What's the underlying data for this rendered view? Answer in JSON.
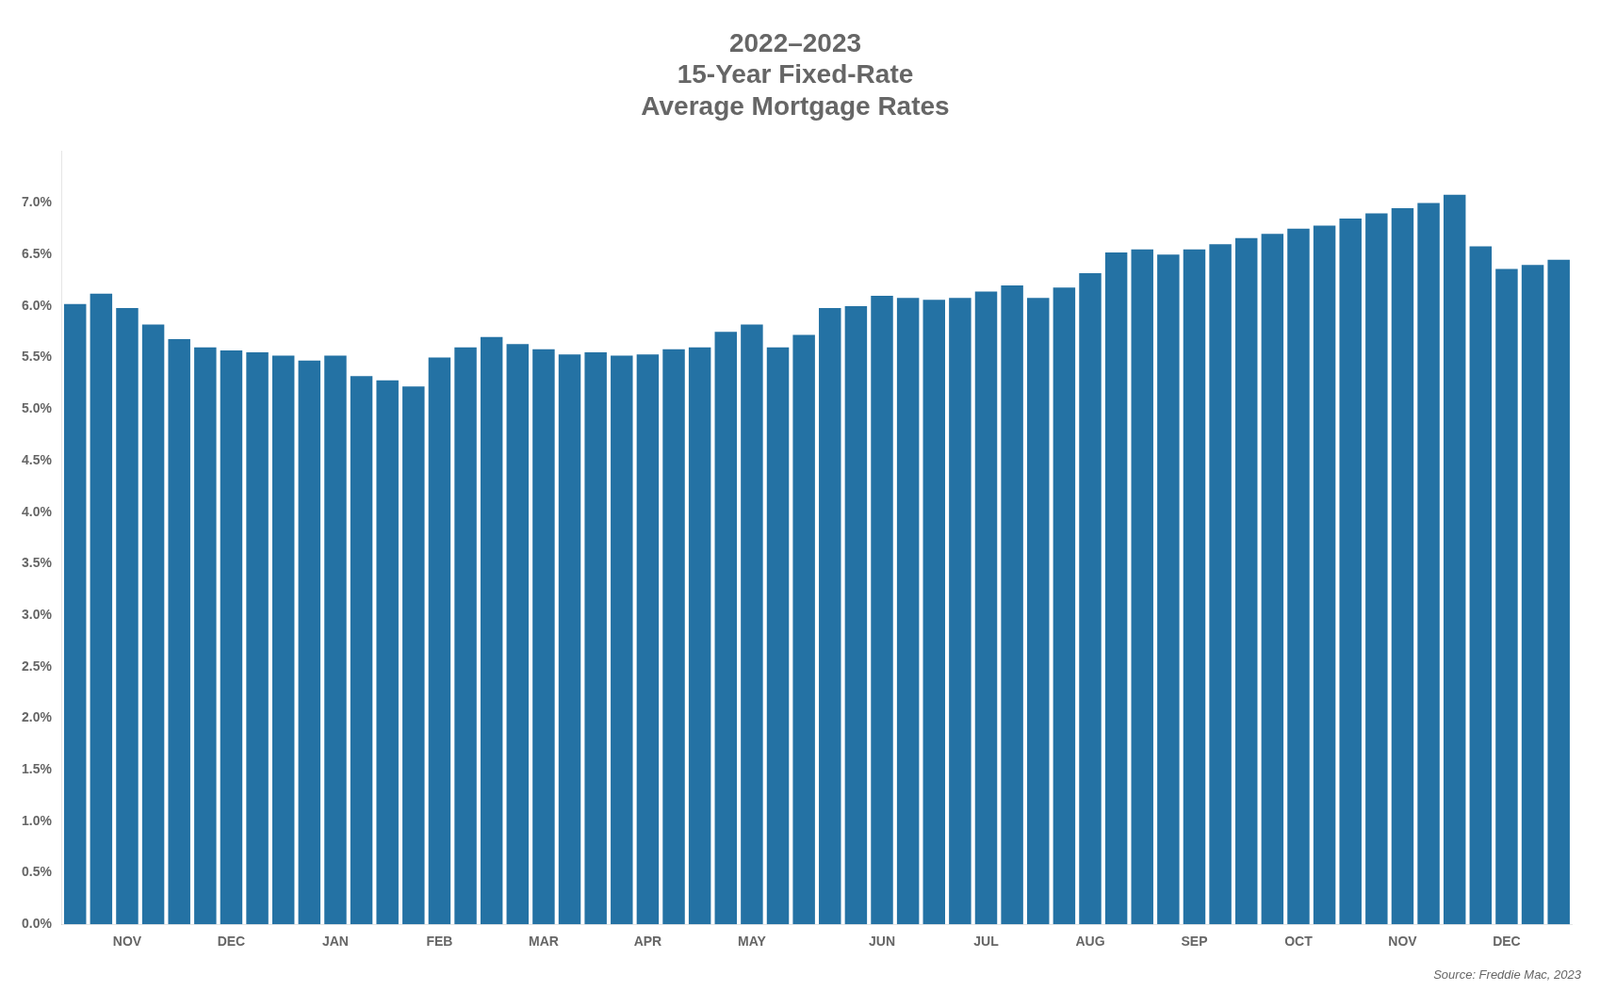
{
  "chart_data": {
    "type": "bar",
    "title": "2022–2023\n15-Year Fixed-Rate\nAverage Mortgage Rates",
    "annotation": "Source: Freddie Mac, 2023",
    "categories": [
      null,
      null,
      "NOV",
      null,
      null,
      null,
      "DEC",
      null,
      null,
      null,
      "JAN",
      null,
      null,
      null,
      "FEB",
      null,
      null,
      null,
      "MAR",
      null,
      null,
      null,
      "APR",
      null,
      null,
      null,
      "MAY",
      null,
      null,
      null,
      null,
      "JUN",
      null,
      null,
      null,
      "JUL",
      null,
      null,
      null,
      "AUG",
      null,
      null,
      null,
      "SEP",
      null,
      null,
      null,
      "OCT",
      null,
      null,
      null,
      "NOV",
      null,
      null,
      null,
      "DEC",
      null,
      null
    ],
    "values": [
      6.02,
      6.12,
      5.98,
      5.82,
      5.68,
      5.6,
      5.57,
      5.55,
      5.52,
      5.47,
      5.52,
      5.32,
      5.28,
      5.22,
      5.5,
      5.6,
      5.7,
      5.63,
      5.58,
      5.53,
      5.55,
      5.52,
      5.53,
      5.58,
      5.6,
      5.75,
      5.82,
      5.6,
      5.72,
      5.98,
      6.0,
      6.1,
      6.08,
      6.06,
      6.08,
      6.14,
      6.2,
      6.08,
      6.18,
      6.32,
      6.52,
      6.55,
      6.5,
      6.55,
      6.6,
      6.66,
      6.7,
      6.75,
      6.78,
      6.85,
      6.9,
      6.95,
      7.0,
      7.08,
      6.58,
      6.36,
      6.4,
      6.45
    ],
    "color": "#2472a4",
    "ylim": [
      0.0,
      7.5
    ],
    "yticks": [
      {
        "value": 0.0,
        "label": "0.0%"
      },
      {
        "value": 0.5,
        "label": "0.5%"
      },
      {
        "value": 1.0,
        "label": "1.0%"
      },
      {
        "value": 1.5,
        "label": "1.5%"
      },
      {
        "value": 2.0,
        "label": "2.0%"
      },
      {
        "value": 2.5,
        "label": "2.5%"
      },
      {
        "value": 3.0,
        "label": "3.0%"
      },
      {
        "value": 3.5,
        "label": "3.5%"
      },
      {
        "value": 4.0,
        "label": "4.0%"
      },
      {
        "value": 4.5,
        "label": "4.5%"
      },
      {
        "value": 5.0,
        "label": "5.0%"
      },
      {
        "value": 5.5,
        "label": "5.5%"
      },
      {
        "value": 6.0,
        "label": "6.0%"
      },
      {
        "value": 6.5,
        "label": "6.5%"
      },
      {
        "value": 7.0,
        "label": "7.0%"
      }
    ],
    "grid": false
  }
}
